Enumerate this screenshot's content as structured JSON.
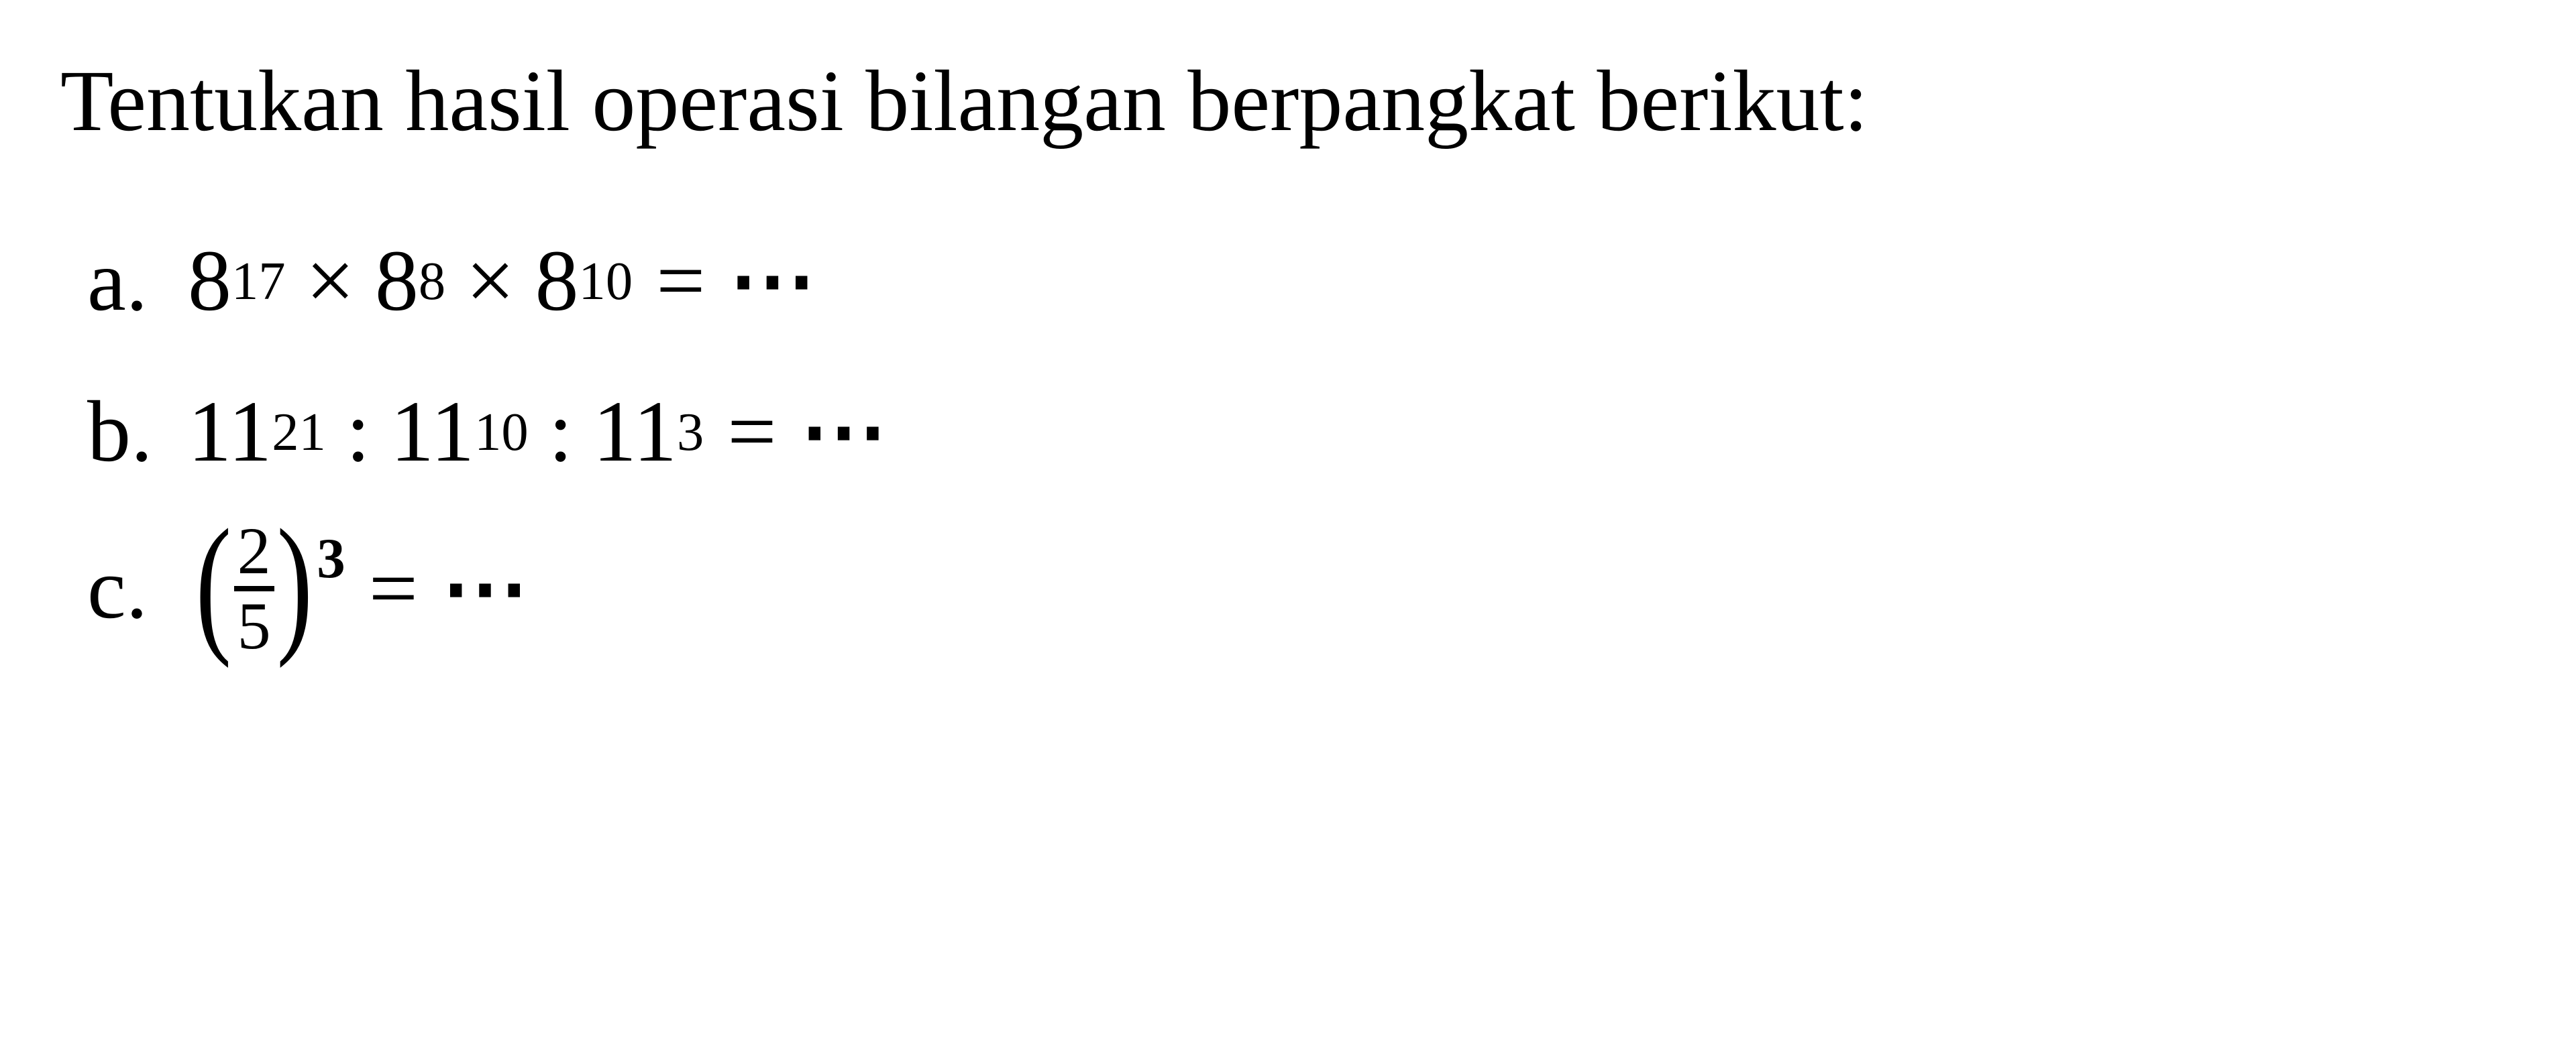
{
  "instruction": {
    "text": "Tentukan hasil operasi bilangan berpangkat berikut:",
    "fontsize": 130,
    "color": "#000000",
    "font_family": "Times New Roman"
  },
  "problems": [
    {
      "label": "a.",
      "terms": [
        {
          "base": "8",
          "exp": "17"
        },
        {
          "base": "8",
          "exp": "8"
        },
        {
          "base": "8",
          "exp": "10"
        }
      ],
      "operator": "×",
      "equals": "=",
      "result_placeholder": "⋯",
      "type": "power-product"
    },
    {
      "label": "b.",
      "terms": [
        {
          "base": "11",
          "exp": "21"
        },
        {
          "base": "11",
          "exp": "10"
        },
        {
          "base": "11",
          "exp": "3"
        }
      ],
      "operator": ":",
      "equals": "=",
      "result_placeholder": "⋯",
      "type": "power-quotient"
    },
    {
      "label": "c.",
      "fraction": {
        "numerator": "2",
        "denominator": "5"
      },
      "outer_exp": "3",
      "equals": "=",
      "result_placeholder": "⋯",
      "type": "fraction-power"
    }
  ],
  "styling": {
    "background_color": "#ffffff",
    "text_color": "#000000",
    "base_fontsize": 130,
    "superscript_scale": 0.62,
    "fraction_fontsize": 100,
    "outer_exp_fontsize": 85,
    "paren_fontsize": 230,
    "frac_line_width": 60,
    "frac_line_height": 8,
    "label_width": 150
  }
}
